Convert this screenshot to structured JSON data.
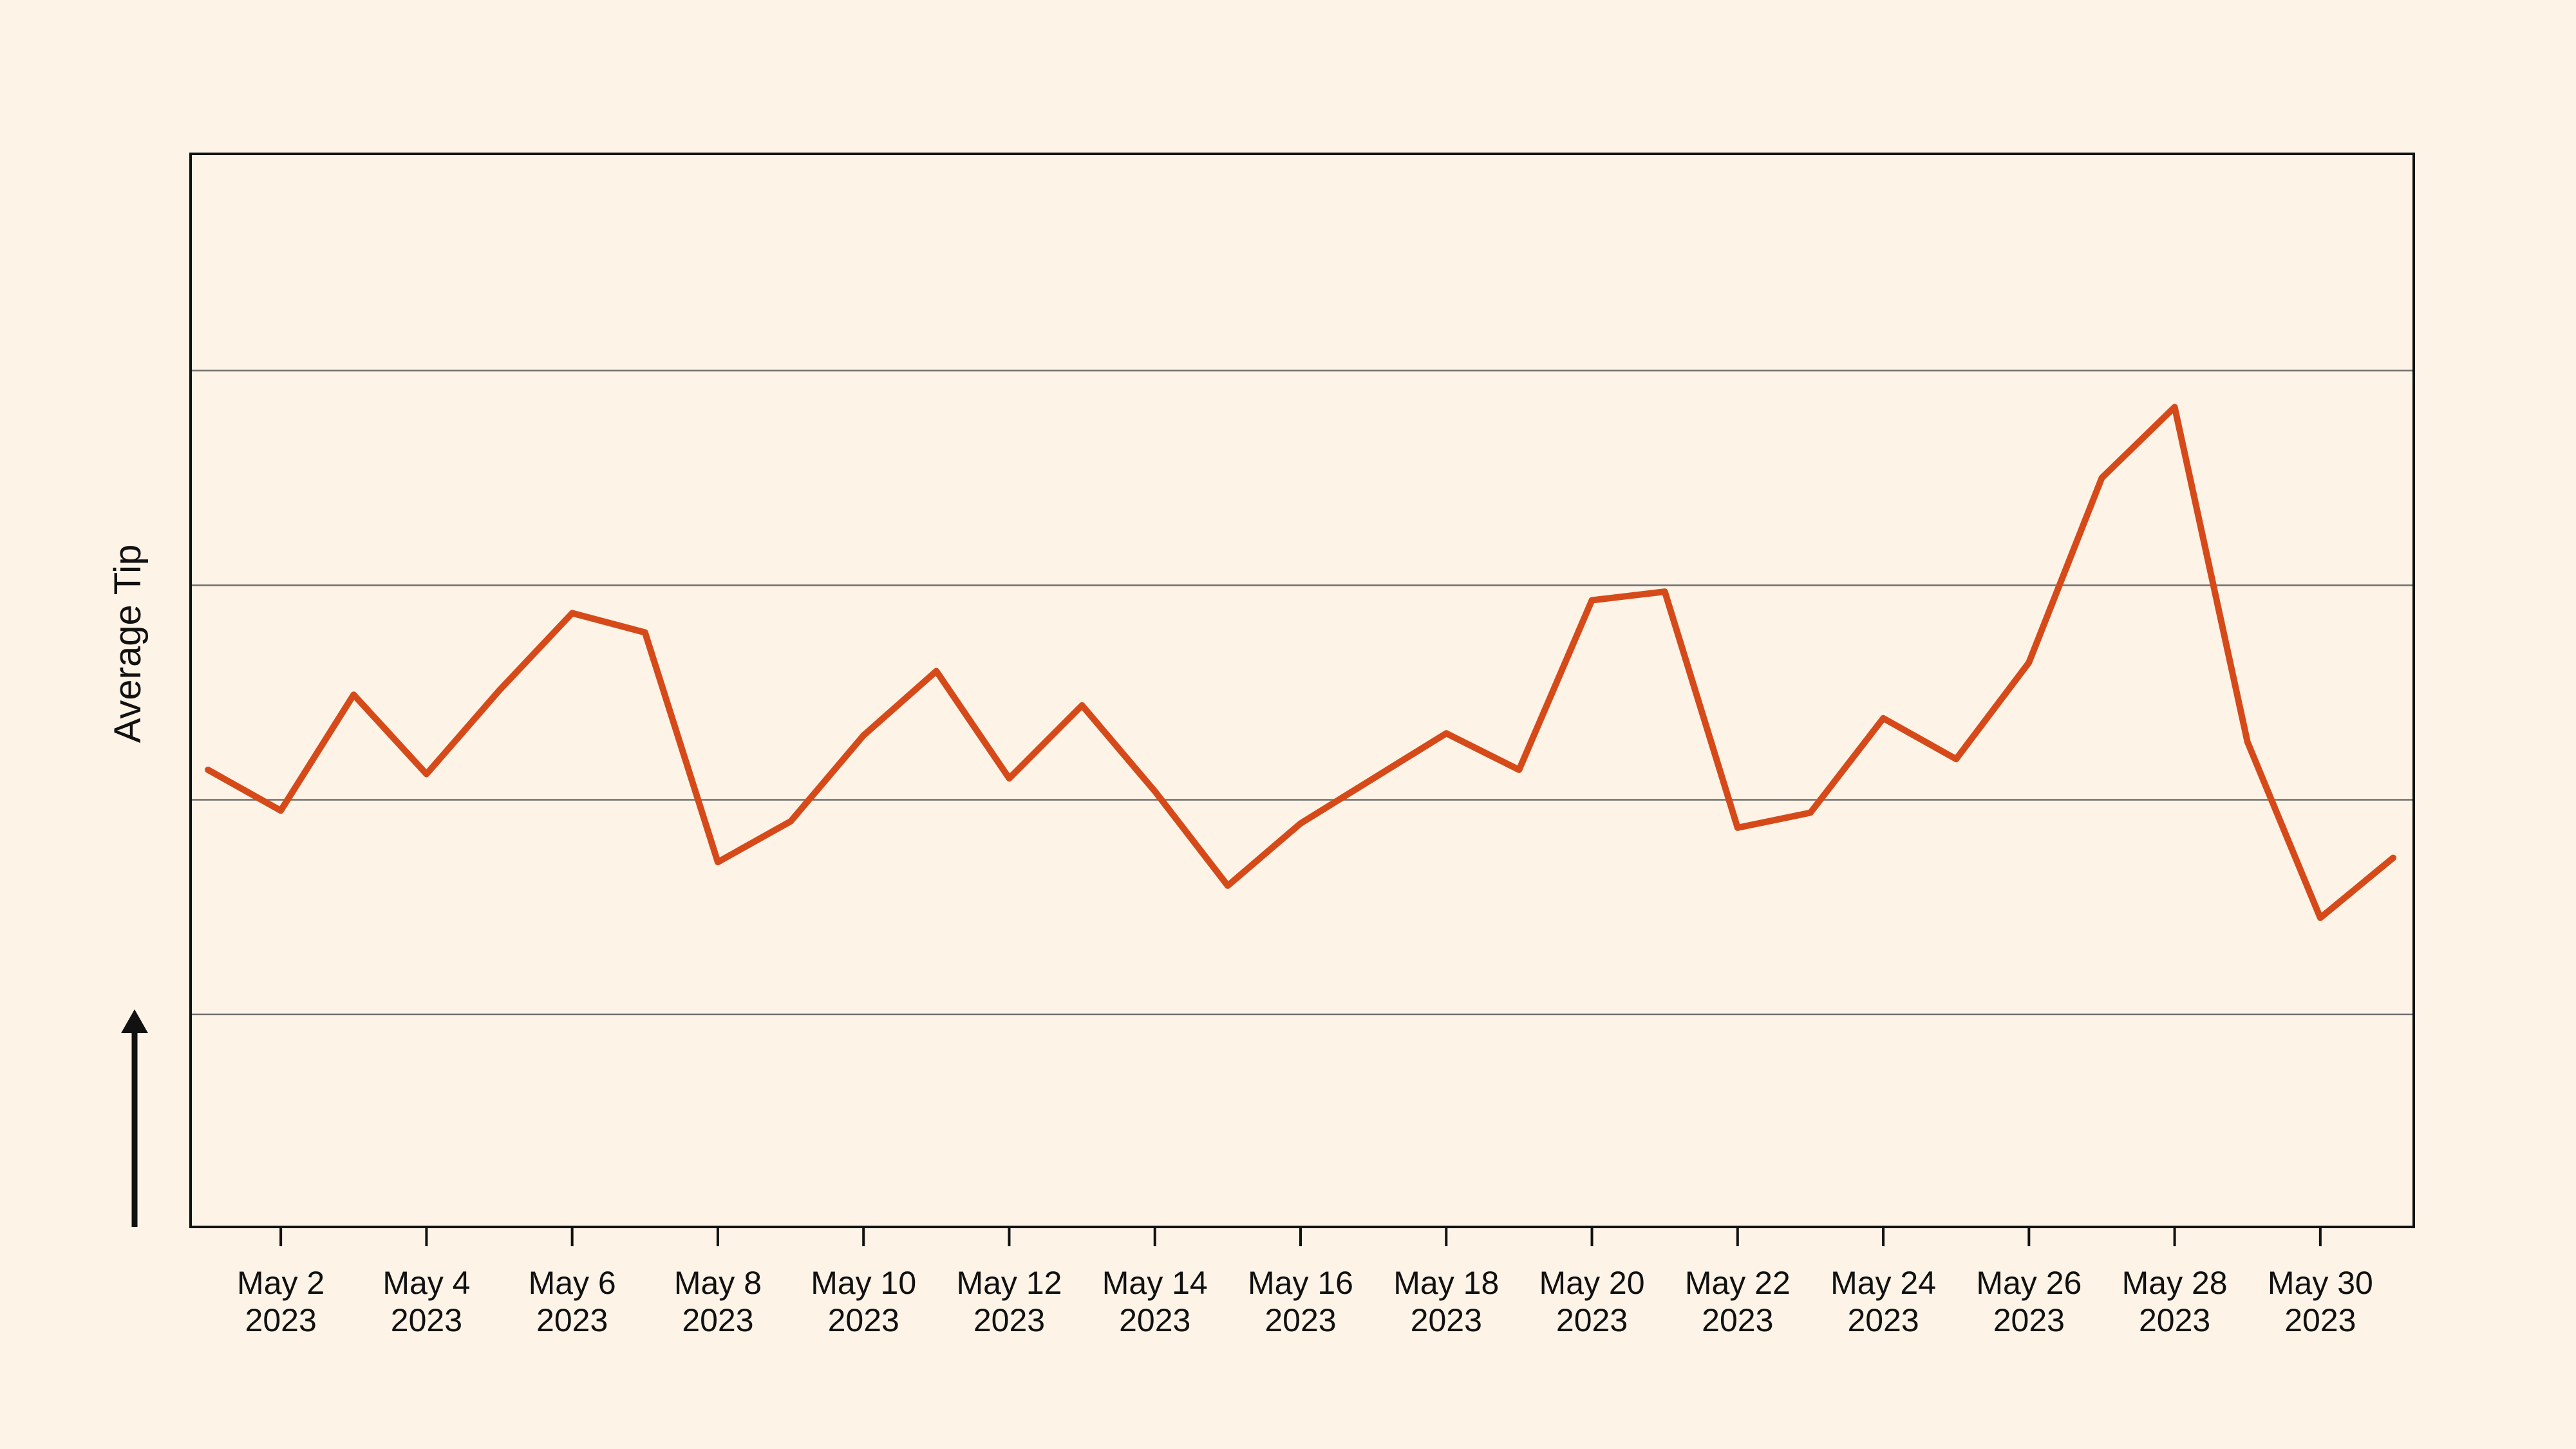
{
  "chart_data": {
    "type": "line",
    "title": "",
    "xlabel": "",
    "ylabel": "Average Tip",
    "grid": "horizontal",
    "x": [
      "2023-05-01",
      "2023-05-02",
      "2023-05-03",
      "2023-05-04",
      "2023-05-05",
      "2023-05-06",
      "2023-05-07",
      "2023-05-08",
      "2023-05-09",
      "2023-05-10",
      "2023-05-11",
      "2023-05-12",
      "2023-05-13",
      "2023-05-14",
      "2023-05-15",
      "2023-05-16",
      "2023-05-17",
      "2023-05-18",
      "2023-05-19",
      "2023-05-20",
      "2023-05-21",
      "2023-05-22",
      "2023-05-23",
      "2023-05-24",
      "2023-05-25",
      "2023-05-26",
      "2023-05-27",
      "2023-05-28",
      "2023-05-29",
      "2023-05-30",
      "2023-05-31"
    ],
    "tick_labels": [
      [
        "May 2",
        "2023"
      ],
      [
        "May 4",
        "2023"
      ],
      [
        "May 6",
        "2023"
      ],
      [
        "May 8",
        "2023"
      ],
      [
        "May 10",
        "2023"
      ],
      [
        "May 12",
        "2023"
      ],
      [
        "May 14",
        "2023"
      ],
      [
        "May 16",
        "2023"
      ],
      [
        "May 18",
        "2023"
      ],
      [
        "May 20",
        "2023"
      ],
      [
        "May 22",
        "2023"
      ],
      [
        "May 24",
        "2023"
      ],
      [
        "May 26",
        "2023"
      ],
      [
        "May 28",
        "2023"
      ],
      [
        "May 30",
        "2023"
      ]
    ],
    "series": [
      {
        "color": "#d64a1a",
        "values": [
          0.14,
          -0.05,
          0.49,
          0.12,
          0.51,
          0.87,
          0.78,
          -0.29,
          -0.1,
          0.3,
          0.6,
          0.1,
          0.44,
          0.04,
          -0.4,
          -0.11,
          0.1,
          0.31,
          0.14,
          0.93,
          0.97,
          -0.13,
          -0.06,
          0.38,
          0.19,
          0.64,
          1.5,
          1.83,
          0.27,
          -0.55,
          -0.27
        ]
      }
    ],
    "gridlines": [
      -1,
      0,
      1,
      2
    ],
    "ylim": [
      -1.99,
      3.01
    ]
  },
  "colors": {
    "background": "#fdf3e7",
    "line": "#d64a1a",
    "grid": "#6f6f6f",
    "frame": "#111111"
  }
}
